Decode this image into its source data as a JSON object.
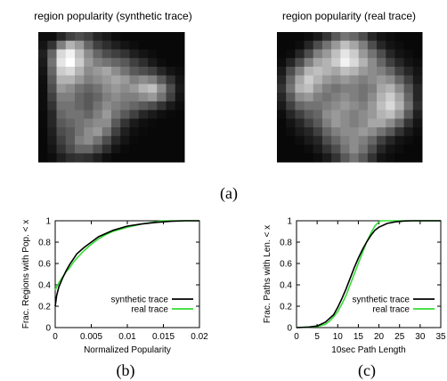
{
  "heatmaps": [
    {
      "title": "region popularity (synthetic trace)",
      "grid": [
        [
          5,
          5,
          15,
          25,
          30,
          25,
          15,
          10,
          5,
          3,
          3,
          3,
          3,
          3,
          3,
          3
        ],
        [
          8,
          20,
          50,
          70,
          60,
          40,
          25,
          18,
          12,
          8,
          5,
          3,
          3,
          3,
          3,
          3
        ],
        [
          12,
          40,
          85,
          95,
          75,
          55,
          40,
          30,
          25,
          20,
          12,
          8,
          5,
          3,
          3,
          3
        ],
        [
          10,
          45,
          90,
          100,
          80,
          60,
          50,
          45,
          40,
          35,
          25,
          18,
          10,
          5,
          3,
          3
        ],
        [
          8,
          40,
          80,
          85,
          70,
          55,
          60,
          65,
          55,
          45,
          35,
          30,
          25,
          15,
          8,
          5
        ],
        [
          6,
          35,
          70,
          70,
          60,
          50,
          55,
          60,
          65,
          60,
          50,
          55,
          50,
          35,
          20,
          8
        ],
        [
          5,
          30,
          60,
          55,
          45,
          40,
          45,
          55,
          60,
          55,
          60,
          70,
          75,
          55,
          30,
          10
        ],
        [
          5,
          25,
          50,
          50,
          40,
          35,
          40,
          50,
          55,
          50,
          50,
          55,
          60,
          45,
          25,
          8
        ],
        [
          5,
          20,
          45,
          45,
          40,
          35,
          45,
          55,
          50,
          45,
          40,
          35,
          30,
          20,
          10,
          5
        ],
        [
          4,
          15,
          40,
          45,
          45,
          40,
          50,
          60,
          45,
          35,
          25,
          15,
          10,
          6,
          4,
          3
        ],
        [
          4,
          15,
          35,
          40,
          45,
          50,
          55,
          55,
          35,
          20,
          10,
          6,
          4,
          3,
          3,
          3
        ],
        [
          3,
          12,
          30,
          35,
          45,
          55,
          60,
          45,
          25,
          12,
          6,
          4,
          3,
          3,
          3,
          3
        ],
        [
          3,
          10,
          25,
          35,
          50,
          55,
          45,
          30,
          15,
          8,
          4,
          3,
          3,
          3,
          3,
          3
        ],
        [
          3,
          8,
          20,
          30,
          40,
          40,
          30,
          18,
          8,
          4,
          3,
          3,
          3,
          3,
          3,
          3
        ],
        [
          3,
          5,
          12,
          18,
          20,
          18,
          12,
          6,
          3,
          3,
          3,
          3,
          3,
          3,
          3,
          3
        ]
      ]
    },
    {
      "title": "region popularity (real trace)",
      "grid": [
        [
          3,
          3,
          3,
          5,
          10,
          20,
          35,
          45,
          40,
          30,
          15,
          8,
          5,
          3,
          3,
          3
        ],
        [
          3,
          3,
          5,
          15,
          30,
          45,
          60,
          75,
          65,
          50,
          30,
          15,
          8,
          5,
          3,
          3
        ],
        [
          3,
          5,
          15,
          30,
          50,
          60,
          75,
          90,
          80,
          60,
          45,
          30,
          15,
          8,
          5,
          3
        ],
        [
          5,
          15,
          30,
          50,
          65,
          70,
          80,
          95,
          85,
          70,
          55,
          40,
          25,
          15,
          8,
          5
        ],
        [
          10,
          30,
          50,
          70,
          75,
          70,
          65,
          75,
          70,
          60,
          55,
          50,
          40,
          25,
          15,
          8
        ],
        [
          15,
          40,
          65,
          80,
          70,
          60,
          55,
          60,
          55,
          50,
          55,
          60,
          55,
          40,
          25,
          10
        ],
        [
          20,
          45,
          70,
          75,
          60,
          50,
          45,
          50,
          50,
          45,
          50,
          65,
          70,
          55,
          35,
          15
        ],
        [
          15,
          35,
          55,
          60,
          50,
          45,
          50,
          55,
          50,
          45,
          55,
          70,
          80,
          65,
          40,
          15
        ],
        [
          10,
          25,
          40,
          45,
          45,
          50,
          55,
          60,
          55,
          50,
          60,
          75,
          85,
          70,
          45,
          18
        ],
        [
          5,
          15,
          25,
          35,
          40,
          55,
          60,
          55,
          50,
          55,
          60,
          70,
          75,
          60,
          35,
          12
        ],
        [
          3,
          8,
          15,
          25,
          35,
          50,
          60,
          55,
          50,
          55,
          65,
          65,
          55,
          40,
          20,
          8
        ],
        [
          3,
          5,
          10,
          15,
          25,
          40,
          50,
          55,
          55,
          60,
          55,
          45,
          35,
          20,
          10,
          5
        ],
        [
          3,
          3,
          5,
          10,
          15,
          30,
          40,
          50,
          55,
          50,
          40,
          25,
          15,
          8,
          5,
          3
        ],
        [
          3,
          3,
          3,
          5,
          10,
          20,
          30,
          45,
          55,
          45,
          30,
          15,
          8,
          5,
          3,
          3
        ],
        [
          3,
          3,
          3,
          3,
          5,
          10,
          20,
          35,
          45,
          35,
          20,
          8,
          5,
          3,
          3,
          3
        ]
      ]
    }
  ],
  "panel_labels": [
    "(a)",
    "(b)",
    "(c)"
  ],
  "chart_data": [
    {
      "type": "line",
      "xlabel": "Normalized Popularity",
      "ylabel": "Frac. Regions with Pop. < x",
      "xlim": [
        0,
        0.02
      ],
      "ylim": [
        0,
        1
      ],
      "xticks": [
        "0",
        "0.005",
        "0.01",
        "0.015",
        "0.02"
      ],
      "xtick_values": [
        0,
        0.005,
        0.01,
        0.015,
        0.02
      ],
      "yticks": [
        "0",
        "0.2",
        "0.4",
        "0.6",
        "0.8",
        "1"
      ],
      "ytick_values": [
        0,
        0.2,
        0.4,
        0.6,
        0.8,
        1
      ],
      "legend_position": "bottom-right",
      "series": [
        {
          "name": "synthetic trace",
          "color": "#000000",
          "x": [
            0,
            0.0002,
            0.0005,
            0.001,
            0.0015,
            0.002,
            0.0025,
            0.003,
            0.004,
            0.005,
            0.006,
            0.007,
            0.008,
            0.01,
            0.012,
            0.014,
            0.016,
            0.018,
            0.02
          ],
          "y": [
            0.2,
            0.3,
            0.38,
            0.46,
            0.53,
            0.59,
            0.64,
            0.69,
            0.75,
            0.8,
            0.85,
            0.88,
            0.91,
            0.95,
            0.97,
            0.985,
            0.995,
            1,
            1
          ]
        },
        {
          "name": "real trace",
          "color": "#33dd33",
          "x": [
            0,
            0.0002,
            0.0005,
            0.001,
            0.0015,
            0.002,
            0.0025,
            0.003,
            0.004,
            0.005,
            0.006,
            0.007,
            0.008,
            0.01,
            0.012,
            0.014,
            0.015,
            0.016,
            0.02
          ],
          "y": [
            0.35,
            0.38,
            0.42,
            0.47,
            0.52,
            0.56,
            0.61,
            0.65,
            0.72,
            0.78,
            0.83,
            0.87,
            0.9,
            0.94,
            0.97,
            0.99,
            1,
            1,
            1
          ]
        }
      ]
    },
    {
      "type": "line",
      "xlabel": "10sec Path Length",
      "ylabel": "Frac. Paths with Len. < x",
      "xlim": [
        0,
        35
      ],
      "ylim": [
        0,
        1
      ],
      "xticks": [
        "0",
        "5",
        "10",
        "15",
        "20",
        "25",
        "30",
        "35"
      ],
      "xtick_values": [
        0,
        5,
        10,
        15,
        20,
        25,
        30,
        35
      ],
      "yticks": [
        "0",
        "0.2",
        "0.4",
        "0.6",
        "0.8",
        "1"
      ],
      "ytick_values": [
        0,
        0.2,
        0.4,
        0.6,
        0.8,
        1
      ],
      "legend_position": "bottom-right",
      "series": [
        {
          "name": "synthetic trace",
          "color": "#000000",
          "x": [
            0,
            3,
            5,
            7,
            9,
            10,
            11,
            12,
            13,
            14,
            15,
            16,
            17,
            18,
            19,
            20,
            22,
            24,
            26,
            28,
            30,
            35
          ],
          "y": [
            0,
            0.005,
            0.015,
            0.05,
            0.12,
            0.19,
            0.27,
            0.36,
            0.46,
            0.56,
            0.65,
            0.73,
            0.8,
            0.86,
            0.91,
            0.94,
            0.975,
            0.99,
            0.997,
            1,
            1,
            1
          ]
        },
        {
          "name": "real trace",
          "color": "#33dd33",
          "x": [
            0,
            3,
            5,
            7,
            8,
            9,
            10,
            11,
            12,
            13,
            14,
            15,
            16,
            17,
            18,
            19,
            20,
            20.5,
            21,
            35
          ],
          "y": [
            0,
            0.005,
            0.01,
            0.03,
            0.06,
            0.1,
            0.15,
            0.22,
            0.3,
            0.4,
            0.5,
            0.6,
            0.7,
            0.8,
            0.88,
            0.95,
            0.99,
            1,
            1,
            1
          ]
        }
      ]
    }
  ]
}
